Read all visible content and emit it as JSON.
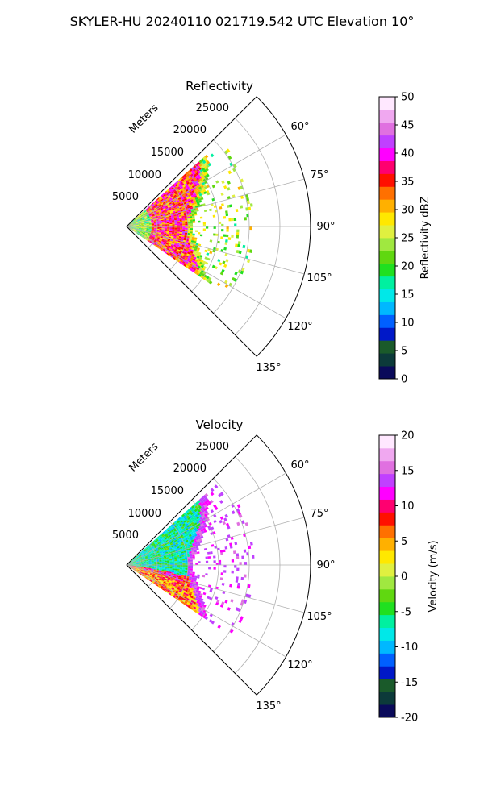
{
  "suptitle": "SKYLER-HU  20240110  021719.542 UTC Elevation 10°",
  "panels": {
    "reflectivity": {
      "title": "Reflectivity",
      "range_label": "Meters",
      "range_ticks": [
        "5000",
        "10000",
        "15000",
        "20000",
        "25000"
      ],
      "azimuth_ticks": [
        "60°",
        "75°",
        "90°",
        "105°",
        "120°",
        "135°"
      ]
    },
    "velocity": {
      "title": "Velocity",
      "range_label": "Meters",
      "range_ticks": [
        "5000",
        "10000",
        "15000",
        "20000",
        "25000"
      ],
      "azimuth_ticks": [
        "60°",
        "75°",
        "90°",
        "105°",
        "120°",
        "135°"
      ]
    }
  },
  "colorbars": {
    "reflectivity": {
      "label": "Reflectivity dBZ",
      "ticks": [
        "0",
        "5",
        "10",
        "15",
        "20",
        "25",
        "30",
        "35",
        "40",
        "45",
        "50"
      ],
      "colors": [
        "#0a0a5a",
        "#0c3a3a",
        "#1a5a2a",
        "#0018c8",
        "#0060ff",
        "#00b8ff",
        "#00e8e8",
        "#00f0a0",
        "#20e020",
        "#60d810",
        "#a0e840",
        "#e0f040",
        "#ffe800",
        "#ffb000",
        "#ff7000",
        "#ff1000",
        "#ff0070",
        "#ff00ff",
        "#c040ff",
        "#e070e0",
        "#f0a8f0",
        "#ffe8ff"
      ]
    },
    "velocity": {
      "label": "Velocity (m/s)",
      "ticks": [
        "-20",
        "-15",
        "-10",
        "-5",
        "0",
        "5",
        "10",
        "15",
        "20"
      ],
      "colors": [
        "#0a0a5a",
        "#0c3a3a",
        "#1a5a2a",
        "#0018c8",
        "#0060ff",
        "#00b8ff",
        "#00e8e8",
        "#00f0a0",
        "#20e020",
        "#60d810",
        "#a0e840",
        "#e0f040",
        "#ffe800",
        "#ffb000",
        "#ff7000",
        "#ff1000",
        "#ff0070",
        "#ff00ff",
        "#c040ff",
        "#e070e0",
        "#f0a8f0",
        "#ffe8ff"
      ]
    }
  },
  "chart_data": [
    {
      "type": "heatmap",
      "title": "Reflectivity",
      "projection": "polar sector (PPI)",
      "radial_label": "Meters",
      "radial_range": [
        0,
        30000
      ],
      "radial_ticks": [
        5000,
        10000,
        15000,
        20000,
        25000
      ],
      "azimuth_range_deg": [
        45,
        135
      ],
      "azimuth_ticks_deg": [
        60,
        75,
        90,
        105,
        120,
        135
      ],
      "colorbar": {
        "label": "Reflectivity dBZ",
        "range": [
          0,
          50
        ]
      },
      "echo_extent_m": 19000,
      "dominant_values_dBZ": [
        25,
        40
      ]
    },
    {
      "type": "heatmap",
      "title": "Velocity",
      "projection": "polar sector (PPI)",
      "radial_label": "Meters",
      "radial_range": [
        0,
        30000
      ],
      "radial_ticks": [
        5000,
        10000,
        15000,
        20000,
        25000
      ],
      "azimuth_range_deg": [
        45,
        135
      ],
      "azimuth_ticks_deg": [
        60,
        75,
        90,
        105,
        120,
        135
      ],
      "colorbar": {
        "label": "Velocity (m/s)",
        "range": [
          -20,
          20
        ]
      },
      "echo_extent_m": 19000,
      "dominant_values_ms": [
        -8,
        10
      ]
    }
  ]
}
